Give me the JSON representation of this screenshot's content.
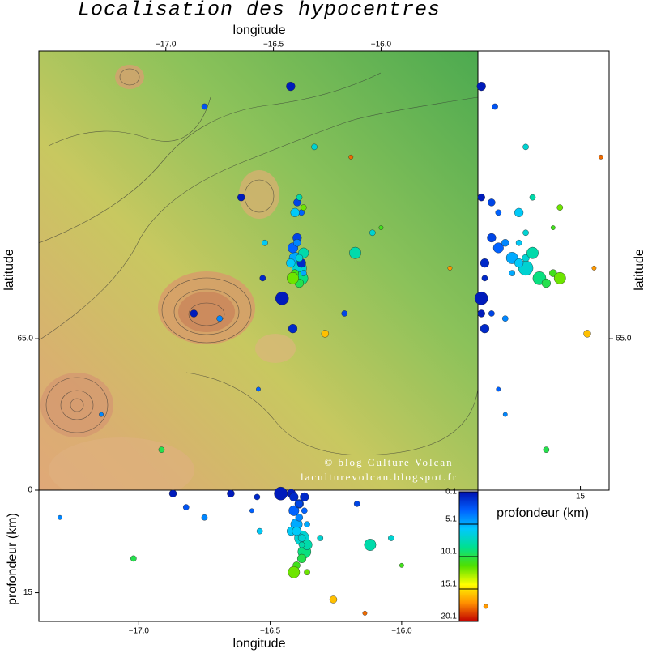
{
  "chart_data": {
    "type": "scatter",
    "title": "Localisation des hypocentres",
    "watermark": [
      "© blog Culture Volcan",
      "laculturevolcan.blogspot.fr"
    ],
    "x_label": "longitude",
    "y_label": "latitude",
    "depth_label": "profondeur (km)",
    "x": [
      -16.4,
      -16.38,
      -16.41,
      -16.37,
      -16.39,
      -16.42,
      -16.36,
      -16.38,
      -16.4,
      -16.39,
      -16.37,
      -16.41,
      -16.38,
      -16.36,
      -16.39,
      -16.37,
      -16.4,
      -16.38,
      -16.36,
      -16.42,
      -16.46,
      -16.41,
      -16.26,
      -16.12,
      -16.87,
      -16.75,
      -16.65,
      -16.14,
      -16.31,
      -16.54,
      -16.55,
      -16.04,
      -16.17,
      -15.68,
      -16.57,
      -16.0,
      -17.02,
      -16.82,
      -17.3
    ],
    "y": [
      65.16,
      65.14,
      65.18,
      65.12,
      65.2,
      65.15,
      65.17,
      65.11,
      65.13,
      65.19,
      65.15,
      65.12,
      65.16,
      65.13,
      65.27,
      65.25,
      65.25,
      65.28,
      65.26,
      65.5,
      65.08,
      65.02,
      65.01,
      65.17,
      65.05,
      65.04,
      65.28,
      65.36,
      65.38,
      65.19,
      65.12,
      65.21,
      65.05,
      65.14,
      64.9,
      65.22,
      64.78,
      65.46,
      64.85
    ],
    "depth": [
      5,
      7,
      3,
      9,
      2,
      6,
      8,
      10,
      11,
      4,
      1,
      12,
      7,
      5,
      2,
      3,
      6,
      8,
      12,
      0.5,
      0.5,
      1,
      16,
      8,
      0.5,
      4,
      0.5,
      18,
      7,
      6,
      1,
      7,
      2,
      17,
      3,
      11,
      10,
      2.5,
      4
    ],
    "size": [
      8,
      10,
      7,
      9,
      6,
      6,
      7,
      6,
      5,
      5,
      6,
      8,
      5,
      4,
      5,
      4,
      6,
      4,
      4,
      6,
      9,
      6,
      5,
      8,
      5,
      4,
      5,
      3,
      4,
      4,
      4,
      4,
      4,
      3,
      3,
      3,
      4,
      4,
      3
    ],
    "xlim": [
      -17.59,
      -15.55
    ],
    "xticks": [
      {
        "value": -17,
        "label": "−17.0"
      },
      {
        "value": -16.5,
        "label": "−16.5"
      },
      {
        "value": -16,
        "label": "−16.0"
      }
    ],
    "ylim": [
      64.7,
      65.57
    ],
    "yticks": [
      {
        "value": 65,
        "label": "65.0"
      }
    ],
    "section_xlim": [
      -17.38,
      -15.71
    ],
    "depth_lim": [
      0,
      19.2
    ],
    "depth_ticks": [
      0,
      15
    ],
    "colorbar": {
      "lim": [
        0.1,
        20.1
      ],
      "ticks": [
        0.1,
        5.1,
        10.1,
        15.1,
        20.1
      ],
      "colors": [
        "#0010b0",
        "#0060ff",
        "#00c8ff",
        "#00e090",
        "#50e000",
        "#ffff00",
        "#ff9000",
        "#c00000"
      ]
    }
  }
}
